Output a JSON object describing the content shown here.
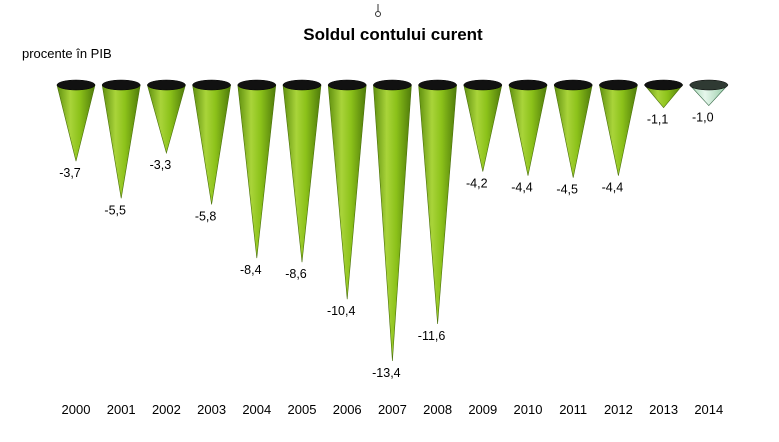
{
  "chart_data": {
    "type": "bar",
    "title": "Soldul contului curent",
    "ylabel": "procente în PIB",
    "categories": [
      "2000",
      "2001",
      "2002",
      "2003",
      "2004",
      "2005",
      "2006",
      "2007",
      "2008",
      "2009",
      "2010",
      "2011",
      "2012",
      "2013",
      "2014"
    ],
    "values": [
      -3.7,
      -5.5,
      -3.3,
      -5.8,
      -8.4,
      -8.6,
      -10.4,
      -13.4,
      -11.6,
      -4.2,
      -4.4,
      -4.5,
      -4.4,
      -1.1,
      -1.0
    ],
    "value_labels": [
      "-3,7",
      "-5,5",
      "-3,3",
      "-5,8",
      "-8,4",
      "-8,6",
      "-10,4",
      "-13,4",
      "-11,6",
      "-4,2",
      "-4,4",
      "-4,5",
      "-4,4",
      "-1,1",
      "-1,0"
    ],
    "ylim": [
      -13.4,
      0
    ],
    "grid": false,
    "legend": "none",
    "colors": {
      "cone_fill": "#8cc21a",
      "cone_fill_light": "#bde06a",
      "cone_top": "#111111",
      "forecast_fill": "#c9ecd6",
      "forecast_stroke": "#3a6a4a"
    }
  }
}
